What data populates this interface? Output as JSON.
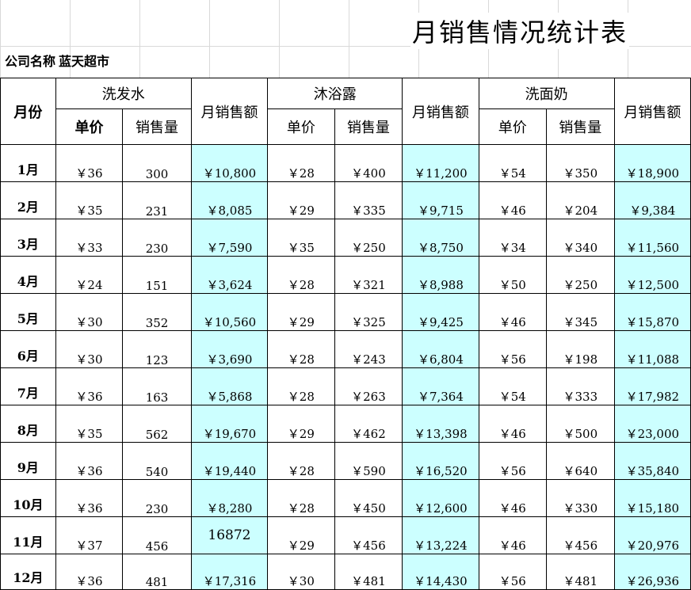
{
  "title": "月销售情况统计表",
  "company": {
    "label": "公司名称",
    "value": "蓝天超市"
  },
  "headers": {
    "month": "月份",
    "products": [
      "洗发水",
      "沐浴露",
      "洗面奶"
    ],
    "price": "单价",
    "quantity": "销售量",
    "amount": "月销售额"
  },
  "rows": [
    {
      "month": "1月",
      "p1": "￥36",
      "q1": "300",
      "a1": "￥10,800",
      "p2": "￥28",
      "q2": "￥400",
      "a2": "￥11,200",
      "p3": "￥54",
      "q3": "￥350",
      "a3": "￥18,900"
    },
    {
      "month": "2月",
      "p1": "￥35",
      "q1": "231",
      "a1": "￥8,085",
      "p2": "￥29",
      "q2": "￥335",
      "a2": "￥9,715",
      "p3": "￥46",
      "q3": "￥204",
      "a3": "￥9,384"
    },
    {
      "month": "3月",
      "p1": "￥33",
      "q1": "230",
      "a1": "￥7,590",
      "p2": "￥35",
      "q2": "￥250",
      "a2": "￥8,750",
      "p3": "￥34",
      "q3": "￥340",
      "a3": "￥11,560"
    },
    {
      "month": "4月",
      "p1": "￥24",
      "q1": "151",
      "a1": "￥3,624",
      "p2": "￥28",
      "q2": "￥321",
      "a2": "￥8,988",
      "p3": "￥50",
      "q3": "￥250",
      "a3": "￥12,500"
    },
    {
      "month": "5月",
      "p1": "￥30",
      "q1": "352",
      "a1": "￥10,560",
      "p2": "￥29",
      "q2": "￥325",
      "a2": "￥9,425",
      "p3": "￥46",
      "q3": "￥345",
      "a3": "￥15,870"
    },
    {
      "month": "6月",
      "p1": "￥30",
      "q1": "123",
      "a1": "￥3,690",
      "p2": "￥28",
      "q2": "￥243",
      "a2": "￥6,804",
      "p3": "￥56",
      "q3": "￥198",
      "a3": "￥11,088"
    },
    {
      "month": "7月",
      "p1": "￥36",
      "q1": "163",
      "a1": "￥5,868",
      "p2": "￥28",
      "q2": "￥263",
      "a2": "￥7,364",
      "p3": "￥54",
      "q3": "￥333",
      "a3": "￥17,982"
    },
    {
      "month": "8月",
      "p1": "￥35",
      "q1": "562",
      "a1": "￥19,670",
      "p2": "￥29",
      "q2": "￥462",
      "a2": "￥13,398",
      "p3": "￥46",
      "q3": "￥500",
      "a3": "￥23,000"
    },
    {
      "month": "9月",
      "p1": "￥36",
      "q1": "540",
      "a1": "￥19,440",
      "p2": "￥28",
      "q2": "￥590",
      "a2": "￥16,520",
      "p3": "￥56",
      "q3": "￥640",
      "a3": "￥35,840"
    },
    {
      "month": "10月",
      "p1": "￥36",
      "q1": "230",
      "a1": "￥8,280",
      "p2": "￥28",
      "q2": "￥450",
      "a2": "￥12,600",
      "p3": "￥46",
      "q3": "￥330",
      "a3": "￥15,180"
    },
    {
      "month": "11月",
      "p1": "￥37",
      "q1": "456",
      "a1": "16872",
      "p2": "￥29",
      "q2": "￥456",
      "a2": "￥13,224",
      "p3": "￥46",
      "q3": "￥456",
      "a3": "￥20,976"
    },
    {
      "month": "12月",
      "p1": "￥36",
      "q1": "481",
      "a1": "￥17,316",
      "p2": "￥30",
      "q2": "￥481",
      "a2": "￥14,430",
      "p3": "￥56",
      "q3": "￥481",
      "a3": "￥26,936"
    }
  ],
  "colors": {
    "amount_fill": "#ccffff",
    "gridline": "#d9d9d9",
    "border": "#000000"
  }
}
